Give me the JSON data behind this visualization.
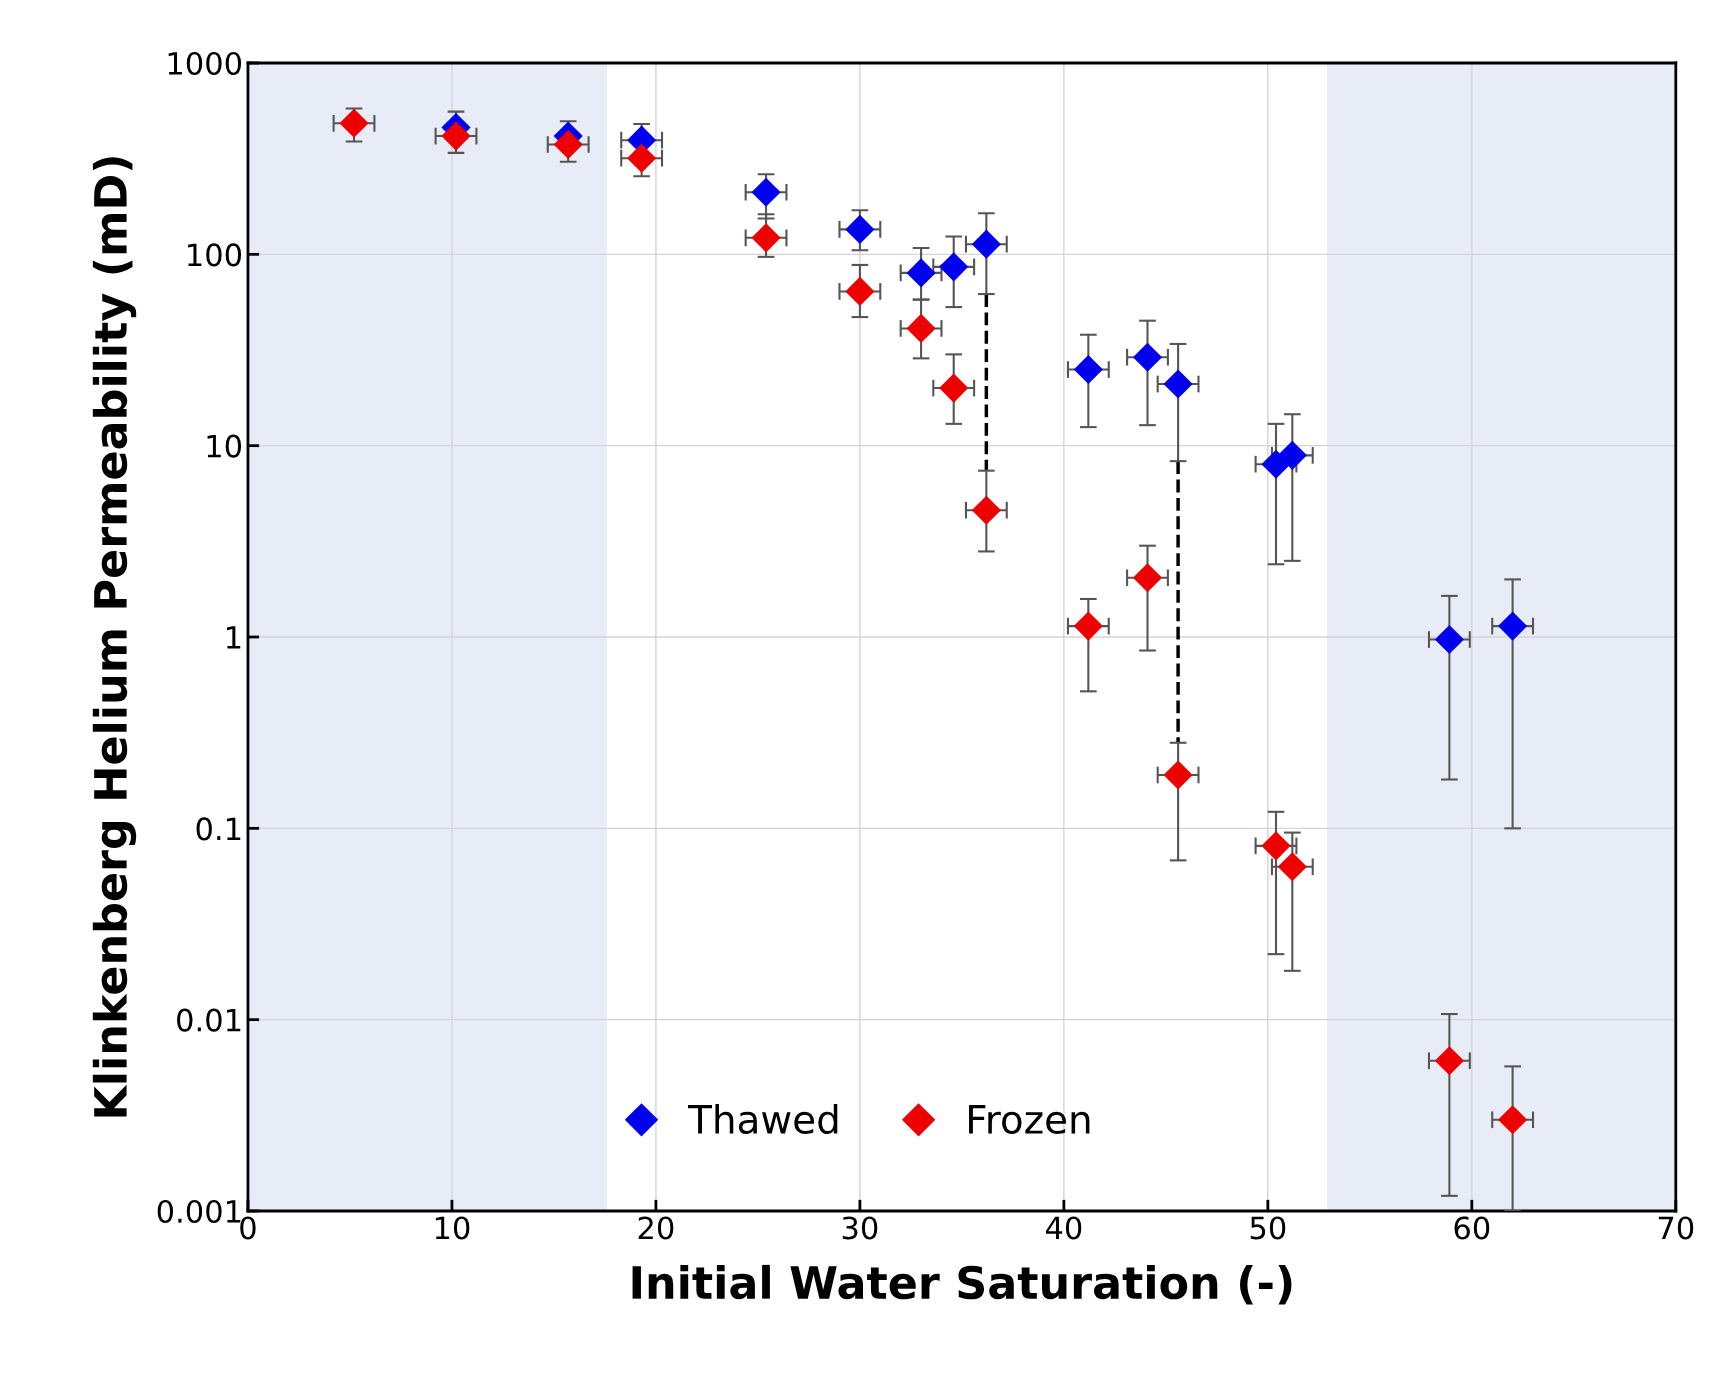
{
  "chart_data": {
    "type": "scatter",
    "xlabel": "Initial Water Saturation (-)",
    "ylabel": "Klinkenberg Helium Permeability (mD)",
    "log": "y",
    "xlim": [
      0,
      70
    ],
    "xticks": [
      0,
      10,
      20,
      30,
      40,
      50,
      60,
      70
    ],
    "ylim": [
      0.001,
      1000
    ],
    "yticks": [
      0.001,
      0.01,
      0.1,
      1,
      10,
      100,
      1000
    ],
    "grid": true,
    "legend": "bottom",
    "marker": "diamond",
    "bands": [
      {
        "axis": "x",
        "from": 0,
        "to": 17.6,
        "color": "#e8ecf6"
      },
      {
        "axis": "x",
        "from": 52.9,
        "to": 70,
        "color": "#e8ecf6"
      }
    ],
    "series": [
      {
        "name": "Thawed",
        "color": "#0000ee",
        "x": [
          10.2,
          15.7,
          19.3,
          25.4,
          30.0,
          33.0,
          34.6,
          36.2,
          41.2,
          44.1,
          45.6,
          50.4,
          51.2,
          58.9,
          62.0
        ],
        "values": [
          460,
          415,
          395,
          211,
          135,
          80,
          86,
          113,
          25,
          29,
          21,
          8.0,
          8.9,
          0.97,
          1.14
        ],
        "errors": [
          [
            460,
            557
          ],
          [
            415,
            496
          ],
          [
            395,
            480
          ],
          [
            154,
            262
          ],
          [
            105,
            170
          ],
          [
            58,
            108
          ],
          [
            53,
            124
          ],
          [
            62,
            164
          ],
          [
            12.5,
            38
          ],
          [
            12.8,
            45
          ],
          [
            8.3,
            34
          ],
          [
            2.4,
            13
          ],
          [
            2.5,
            14.6
          ],
          [
            0.18,
            1.64
          ],
          [
            0.1,
            2.0
          ]
        ],
        "xerrors": [
          null,
          null,
          1,
          1,
          1,
          1,
          1,
          1,
          1,
          1,
          1,
          1,
          1,
          1,
          1
        ]
      },
      {
        "name": "Frozen",
        "color": "#ee0000",
        "x": [
          5.2,
          10.2,
          15.7,
          19.3,
          25.4,
          30.0,
          33.0,
          34.6,
          36.2,
          41.2,
          44.1,
          45.6,
          50.4,
          51.2,
          58.9,
          62.0
        ],
        "values": [
          484,
          415,
          375,
          318,
          122,
          64,
          41,
          20,
          4.6,
          1.14,
          2.04,
          0.19,
          0.081,
          0.063,
          0.0061,
          0.003
        ],
        "errors": [
          [
            389,
            578
          ],
          [
            339,
            415
          ],
          [
            305,
            375
          ],
          [
            256,
            318
          ],
          [
            97,
            162
          ],
          [
            47,
            88
          ],
          [
            28.6,
            58
          ],
          [
            13,
            30
          ],
          [
            2.8,
            7.4
          ],
          [
            0.52,
            1.58
          ],
          [
            0.85,
            3.0
          ],
          [
            0.068,
            0.28
          ],
          [
            0.022,
            0.122
          ],
          [
            0.018,
            0.095
          ],
          [
            0.0012,
            0.0107
          ],
          [
            0.001,
            0.0057
          ]
        ],
        "xerrors": [
          1,
          1,
          1,
          1,
          1,
          1,
          1,
          1,
          1,
          1,
          1,
          1,
          1,
          1,
          1,
          1
        ]
      },
      {
        "type": "line",
        "color": "#000000",
        "line_style": "dashed",
        "marker": "none",
        "x": [
          36.2,
          36.2
        ],
        "values": [
          62,
          7.4
        ]
      },
      {
        "type": "line",
        "color": "#000000",
        "line_style": "dashed",
        "marker": "none",
        "x": [
          45.6,
          45.6
        ],
        "values": [
          8.3,
          0.28
        ]
      }
    ]
  }
}
